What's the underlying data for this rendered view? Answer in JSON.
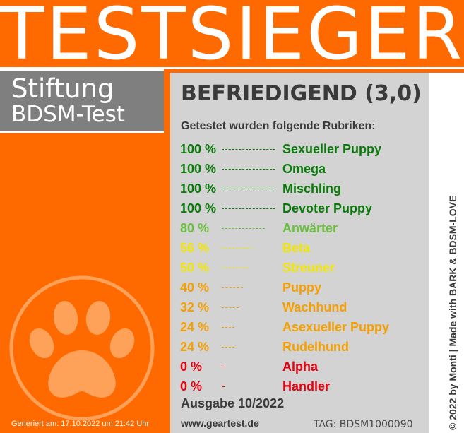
{
  "header": {
    "title": "TESTSIEGER"
  },
  "brand": {
    "line1": "Stiftung",
    "line2": "BDSM-Test"
  },
  "result": {
    "rating": "BEFRIEDIGEND (3,0)",
    "subtitle": "Getestet wurden folgende Rubriken:"
  },
  "rubrics": [
    {
      "percent": "100 %",
      "name": "Sexueller Puppy",
      "value": 100,
      "color": "#0a7a0a"
    },
    {
      "percent": "100 %",
      "name": "Omega",
      "value": 100,
      "color": "#0a7a0a"
    },
    {
      "percent": "100 %",
      "name": "Mischling",
      "value": 100,
      "color": "#0a7a0a"
    },
    {
      "percent": "100 %",
      "name": "Devoter Puppy",
      "value": 100,
      "color": "#0a7a0a"
    },
    {
      "percent": "80 %",
      "name": "Anwärter",
      "value": 80,
      "color": "#6abf3c"
    },
    {
      "percent": "56 %",
      "name": "Beta",
      "value": 56,
      "color": "#f2e600"
    },
    {
      "percent": "50 %",
      "name": "Streuner",
      "value": 50,
      "color": "#f2e600"
    },
    {
      "percent": "40 %",
      "name": "Puppy",
      "value": 40,
      "color": "#f5a000"
    },
    {
      "percent": "32 %",
      "name": "Wachhund",
      "value": 32,
      "color": "#f5a000"
    },
    {
      "percent": "24 %",
      "name": "Asexueller Puppy",
      "value": 24,
      "color": "#f5a000"
    },
    {
      "percent": "24 %",
      "name": "Rudelhund",
      "value": 24,
      "color": "#f5a000"
    },
    {
      "percent": "0 %",
      "name": "Alpha",
      "value": 0,
      "color": "#e8000f"
    },
    {
      "percent": "0 %",
      "name": "Handler",
      "value": 0,
      "color": "#e8000f"
    }
  ],
  "footer": {
    "issue": "Ausgabe 10/2022",
    "website": "www.geartest.de",
    "tag": "TAG: BDSM1000090",
    "generated": "Generiert am: 17.10.2022 um 21:42 Uhr",
    "copyright": "© 2022 by Monti | Made with BARK & BDSM-LOVE"
  },
  "icons": {
    "paw": "paw-icon"
  },
  "colors": {
    "accent": "#ff6a00",
    "panel": "#d3d3d3",
    "brand_box": "#7f7f7f",
    "text": "#3a3a3a"
  }
}
